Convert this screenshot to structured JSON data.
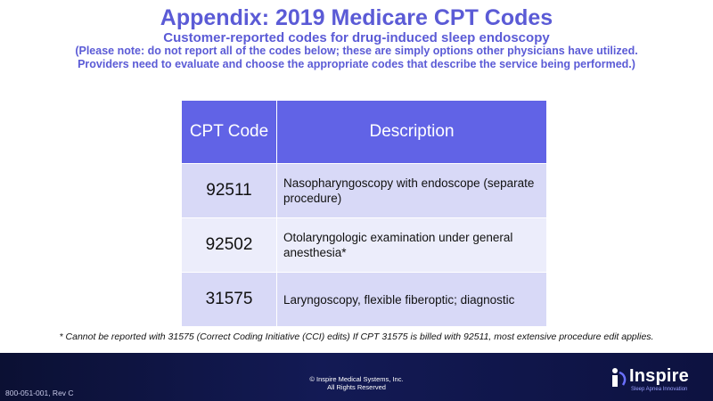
{
  "title": "Appendix: 2019 Medicare CPT Codes",
  "subtitle": "Customer-reported codes for drug-induced sleep endoscopy",
  "note": "(Please note: do not report all of the codes below; these are simply options other physicians have utilized.  Providers need to evaluate and choose the appropriate codes that describe the service being performed.)",
  "table": {
    "headers": [
      "CPT Code",
      "Description"
    ],
    "rows": [
      {
        "code": "92511",
        "description": "Nasopharyngoscopy with endoscope (separate procedure)"
      },
      {
        "code": "92502",
        "description": "Otolaryngologic examination under general anesthesia*"
      },
      {
        "code": "31575",
        "description": "Laryngoscopy, flexible fiberoptic; diagnostic"
      }
    ]
  },
  "footnote": "* Cannot be reported with 31575 (Correct Coding Initiative (CCI) edits)  If CPT 31575 is billed with 92511, most extensive procedure edit applies.",
  "footer": {
    "doc_id": "800-051-001, Rev C",
    "copyright_line1": "© Inspire Medical Systems, Inc.",
    "copyright_line2": "All Rights Reserved",
    "logo_text": "Inspire",
    "logo_tagline": "Sleep Apnea Innovation",
    "logo_icon": "inspire-logo-icon"
  },
  "colors": {
    "accent": "#5b5bd6",
    "header_fill": "#6163e6",
    "row_odd": "#d8d9f7",
    "row_even": "#ecedfb",
    "footer": "#131a55"
  }
}
